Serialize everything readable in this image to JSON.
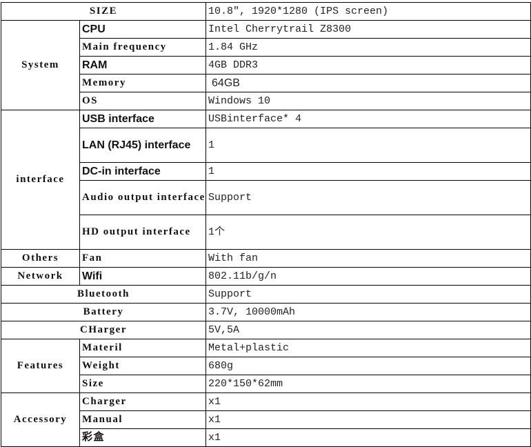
{
  "rows": {
    "size": {
      "label": "SIZE",
      "value": "10.8″, 1920*1280 (IPS screen)"
    },
    "system": {
      "group": "System",
      "cpu": {
        "label": "CPU",
        "value": "Intel Cherrytrail Z8300"
      },
      "freq": {
        "label": "Main frequency",
        "value": "1.84 GHz"
      },
      "ram": {
        "label": "RAM",
        "value": "4GB DDR3"
      },
      "memory": {
        "label": "Memory",
        "value": "64GB"
      },
      "os": {
        "label": "OS",
        "value": "Windows 10"
      }
    },
    "interface": {
      "group": "interface",
      "usb": {
        "label": "USB interface",
        "value": "USBinterface* 4"
      },
      "lan": {
        "label": "LAN (RJ45) interface",
        "value": "1"
      },
      "dc": {
        "label": "DC-in  interface",
        "value": "1"
      },
      "audio": {
        "label": "Audio output interface",
        "value": "Support"
      },
      "hd": {
        "label": "HD output interface",
        "value": "1个"
      }
    },
    "others": {
      "group": "Others",
      "label": "Fan",
      "value": "With fan"
    },
    "network": {
      "group": "Network",
      "label": "Wifi",
      "value": "802.11b/g/n"
    },
    "bluetooth": {
      "label": "Bluetooth",
      "value": "Support"
    },
    "battery": {
      "label": "Battery",
      "value": "3.7V, 10000mAh"
    },
    "charger": {
      "label": "CHarger",
      "value": "5V,5A"
    },
    "features": {
      "group": "Features",
      "material": {
        "label": "Materil",
        "value": "Metal+plastic"
      },
      "weight": {
        "label": "Weight",
        "value": "680g"
      },
      "size": {
        "label": "Size",
        "value": "220*150*62mm"
      }
    },
    "accessory": {
      "group": "Accessory",
      "charger": {
        "label": "Charger",
        "value": "x1"
      },
      "manual": {
        "label": "Manual",
        "value": "x1"
      },
      "box": {
        "label": "彩盒",
        "value": "x1"
      }
    }
  }
}
